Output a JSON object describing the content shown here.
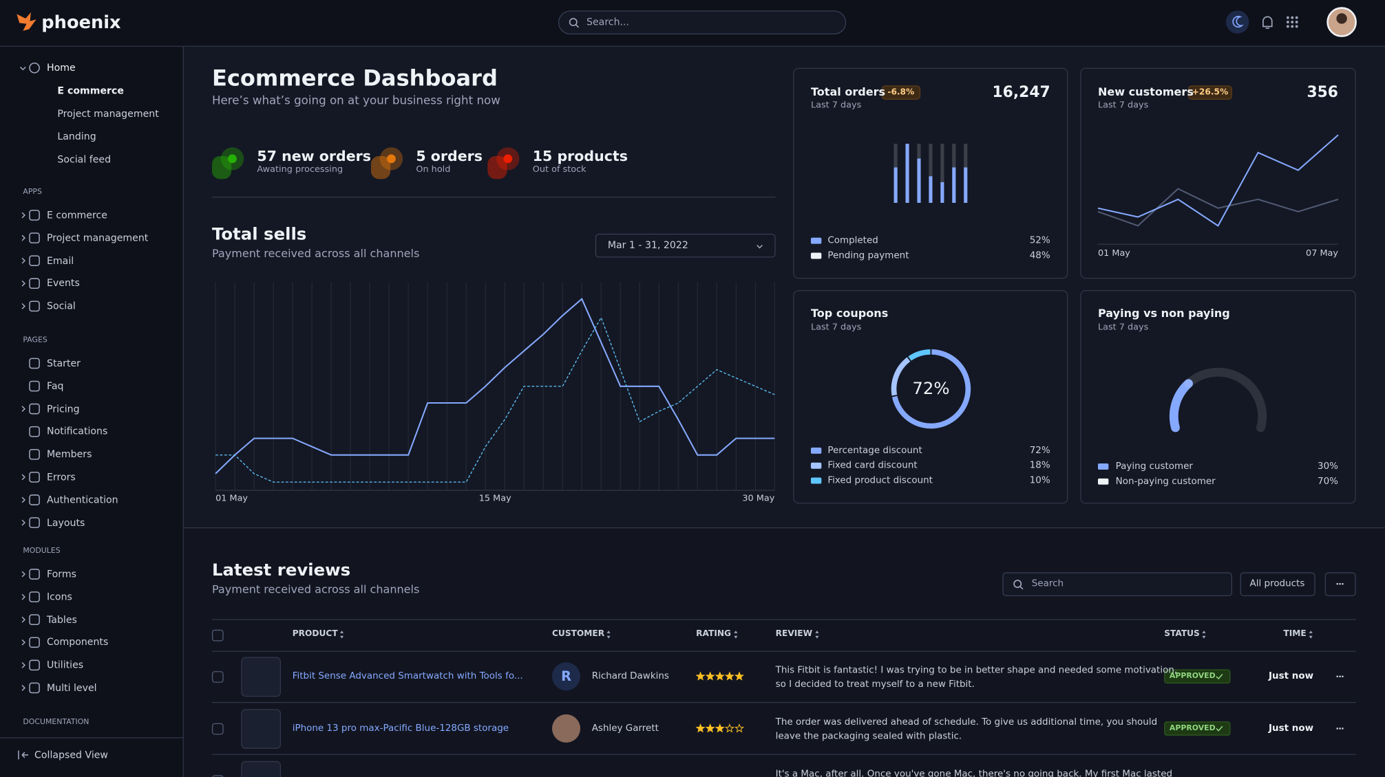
{
  "header": {
    "logo": "phoenix",
    "search": "Search..."
  },
  "sidebar": {
    "home": {
      "label": "Home",
      "items": [
        "E commerce",
        "Project management",
        "Landing",
        "Social feed"
      ]
    },
    "sections": [
      {
        "title": "APPS",
        "items": [
          "E commerce",
          "Project management",
          "Email",
          "Events",
          "Social"
        ]
      },
      {
        "title": "PAGES",
        "items": [
          "Starter",
          "Faq",
          "Pricing",
          "Notifications",
          "Members",
          "Errors",
          "Authentication",
          "Layouts"
        ]
      },
      {
        "title": "MODULES",
        "items": [
          "Forms",
          "Icons",
          "Tables",
          "Components",
          "Utilities",
          "Multi level"
        ]
      },
      {
        "title": "DOCUMENTATION"
      }
    ],
    "collapse": "Collapsed View"
  },
  "page": {
    "title": "Ecommerce Dashboard",
    "subtitle": "Here’s what’s going on at your business right now"
  },
  "stats": [
    {
      "value": "57 new orders",
      "label": "Awating processing",
      "color": "#25b003"
    },
    {
      "value": "5 orders",
      "label": "On hold",
      "color": "#e5780b"
    },
    {
      "value": "15 products",
      "label": "Out of stock",
      "color": "#ec1f00"
    }
  ],
  "total_sells": {
    "title": "Total sells",
    "subtitle": "Payment received across all channels",
    "date_range": "Mar 1 - 31, 2022",
    "x_labels": [
      "01 May",
      "15 May",
      "30 May"
    ],
    "ylim": [
      0,
      100
    ],
    "series": [
      {
        "color": "#85a9ff",
        "values": [
          8,
          17,
          25,
          25,
          25,
          21,
          17,
          17,
          17,
          17,
          17,
          42,
          42,
          42,
          50,
          59,
          67,
          75,
          84,
          92,
          71,
          50,
          50,
          50,
          34,
          17,
          17,
          25,
          25,
          25
        ]
      },
      {
        "color": "#60c6ff",
        "dashed": true,
        "values": [
          17,
          17,
          8,
          4,
          4,
          4,
          4,
          4,
          4,
          4,
          4,
          4,
          4,
          4,
          21,
          34,
          50,
          50,
          50,
          67,
          83,
          58,
          33,
          38,
          42,
          50,
          58,
          54,
          50,
          46
        ]
      }
    ]
  },
  "total_orders": {
    "title": "Total orders",
    "badge": "-6.8%",
    "period": "Last 7 days",
    "total": "16,247",
    "ylim": [
      0,
      100
    ],
    "series": [
      {
        "name": "Completed",
        "color": "#85a9ff",
        "share": "52%",
        "values": [
          60,
          100,
          75,
          45,
          35,
          60,
          60
        ]
      },
      {
        "name": "Pending payment",
        "color": "#eff2f6",
        "share": "48%",
        "values": [
          40,
          0,
          25,
          55,
          65,
          40,
          40
        ]
      }
    ]
  },
  "new_customers": {
    "title": "New customers",
    "badge": "+26.5%",
    "period": "Last 7 days",
    "total": "356",
    "x_labels": [
      "01 May",
      "07 May"
    ],
    "ylim": [
      0,
      140
    ],
    "series": [
      {
        "color": "#85a9ff",
        "values": [
          41,
          31,
          51,
          21,
          104,
          84,
          124
        ]
      },
      {
        "color": "#525b75",
        "values": [
          37,
          21,
          63,
          41,
          51,
          37,
          51
        ]
      }
    ]
  },
  "top_coupons": {
    "title": "Top coupons",
    "period": "Last 7 days",
    "center": "72%",
    "items": [
      {
        "name": "Percentage discount",
        "color": "#85a9ff",
        "value": 72,
        "value_label": "72%"
      },
      {
        "name": "Fixed card discount",
        "color": "#a6c4ff",
        "value": 18,
        "value_label": "18%"
      },
      {
        "name": "Fixed product discount",
        "color": "#60c6ff",
        "value": 10,
        "value_label": "10%"
      }
    ]
  },
  "paying": {
    "title": "Paying vs non paying",
    "period": "Last 7 days",
    "items": [
      {
        "name": "Paying customer",
        "color": "#85a9ff",
        "value": 30,
        "value_label": "30%"
      },
      {
        "name": "Non-paying customer",
        "color": "#eff2f6",
        "value": 70,
        "value_label": "70%"
      }
    ]
  },
  "reviews": {
    "title": "Latest reviews",
    "subtitle": "Payment received across all channels",
    "search": "Search",
    "filter": "All products",
    "columns": [
      "PRODUCT",
      "CUSTOMER",
      "RATING",
      "REVIEW",
      "STATUS",
      "TIME"
    ],
    "rows": [
      {
        "product": "Fitbit Sense Advanced Smartwatch with Tools fo...",
        "initial": "R",
        "customer": "Richard Dawkins",
        "rating": 5,
        "review": [
          "This Fitbit is fantastic! I was trying to be in better shape and needed some motivation,",
          "so I decided to treat myself to a new Fitbit."
        ],
        "status": "APPROVED",
        "time": "Just now"
      },
      {
        "product": "iPhone 13 pro max-Pacific Blue-128GB storage",
        "customer": "Ashley Garrett",
        "rating": 3,
        "review": [
          "The order was delivered ahead of schedule. To give us additional time, you should",
          "leave the packaging sealed with plastic."
        ],
        "status": "APPROVED",
        "time": "Just now"
      },
      {
        "review": [
          "It's a Mac, after all. Once you've gone Mac, there's no going back. My first Mac lasted"
        ]
      }
    ]
  }
}
